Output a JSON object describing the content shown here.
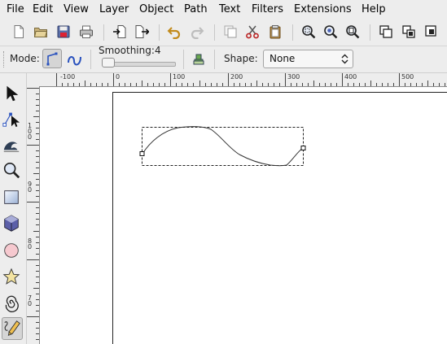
{
  "menu": [
    "File",
    "Edit",
    "View",
    "Layer",
    "Object",
    "Path",
    "Text",
    "Filters",
    "Extensions",
    "Help"
  ],
  "commands": [
    "new-document",
    "open-file",
    "save",
    "print",
    "import",
    "export",
    "undo",
    "redo",
    "duplicate",
    "cut",
    "paste",
    "zoom-selection",
    "zoom-drawing",
    "zoom-page",
    "group",
    "ungroup",
    "lock"
  ],
  "tool_controls": {
    "mode_label": "Mode:",
    "smoothing_label": "Smoothing:",
    "smoothing_value": "4",
    "smoothing_fraction": 0.04,
    "shape_label": "Shape:",
    "shape_value": "None"
  },
  "rulers": {
    "horizontal": [
      "-100",
      "0",
      "100",
      "200",
      "300",
      "400",
      "500"
    ],
    "vertical": [
      "100",
      "90",
      "80",
      "70"
    ]
  },
  "tools": [
    "selector",
    "node-editor",
    "tweak",
    "zoom",
    "rectangle",
    "3d-box",
    "ellipse",
    "star",
    "spiral",
    "pencil"
  ],
  "active_tool": "pencil",
  "colors": {
    "accent": "#2a52be",
    "canvas": "#ffffff",
    "chrome": "#ededed"
  }
}
